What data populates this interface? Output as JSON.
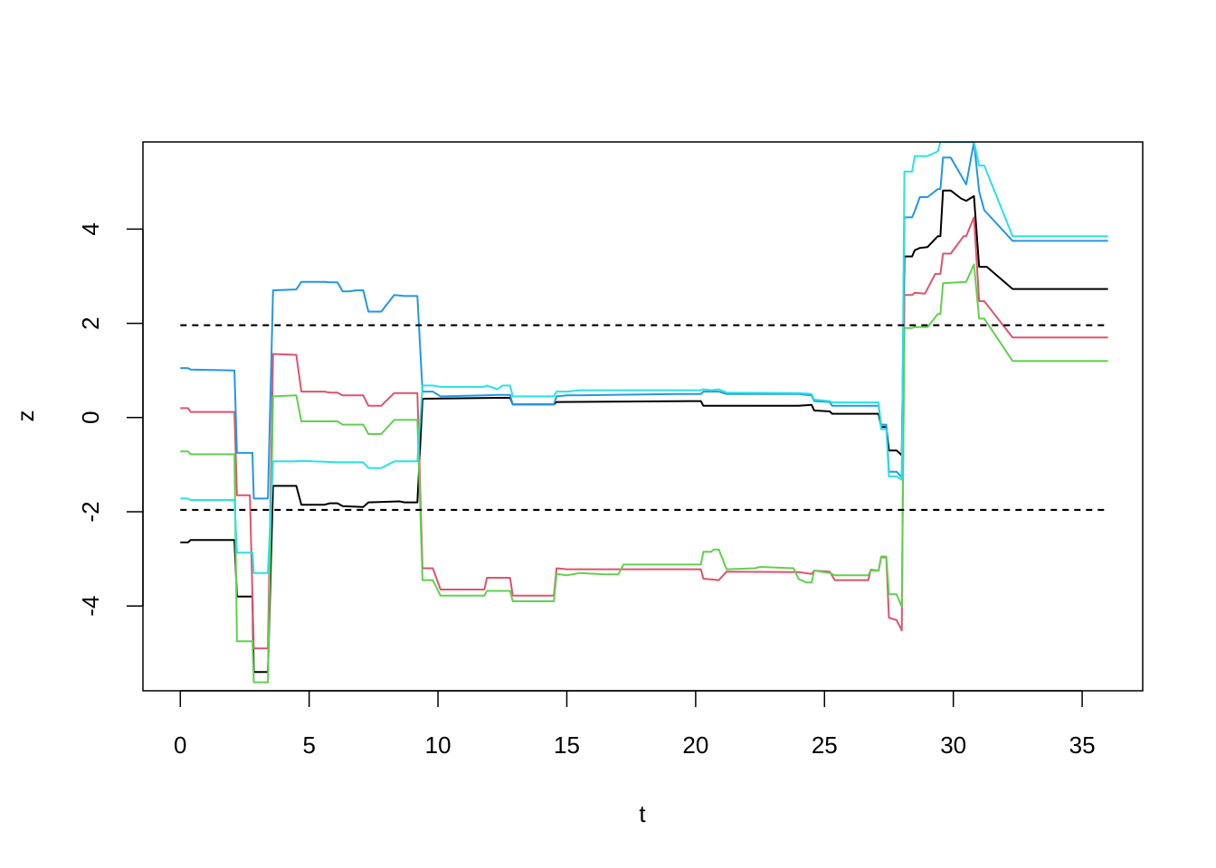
{
  "chart_data": {
    "type": "line",
    "title": "",
    "xlabel": "t",
    "ylabel": "z",
    "xlim": [
      -1.45,
      37.35
    ],
    "ylim": [
      -5.8,
      5.85
    ],
    "x_ticks": [
      0,
      5,
      10,
      15,
      20,
      25,
      30,
      35
    ],
    "x_tick_labels": [
      "0",
      "5",
      "10",
      "15",
      "20",
      "25",
      "30",
      "35"
    ],
    "y_ticks": [
      -4,
      -2,
      0,
      2,
      4
    ],
    "y_tick_labels": [
      "-4",
      "-2",
      "0",
      "2",
      "4"
    ],
    "grid": false,
    "legend": "none",
    "reference_lines": [
      {
        "y": 1.96,
        "x_range": [
          0,
          36
        ],
        "style": "dashed",
        "color": "#000000"
      },
      {
        "y": -1.96,
        "x_range": [
          0,
          36
        ],
        "style": "dashed",
        "color": "#000000"
      }
    ],
    "series": [
      {
        "color": "#000000",
        "points": [
          [
            0,
            -2.65
          ],
          [
            0.3,
            -2.65
          ],
          [
            0.4,
            -2.6
          ],
          [
            2.1,
            -2.6
          ],
          [
            2.2,
            -3.8
          ],
          [
            2.8,
            -3.8
          ],
          [
            2.85,
            -5.4
          ],
          [
            3.4,
            -5.4
          ],
          [
            3.6,
            -1.45
          ],
          [
            4.5,
            -1.45
          ],
          [
            4.7,
            -1.85
          ],
          [
            5.6,
            -1.85
          ],
          [
            5.8,
            -1.82
          ],
          [
            6.1,
            -1.82
          ],
          [
            6.3,
            -1.88
          ],
          [
            7.1,
            -1.9
          ],
          [
            7.3,
            -1.8
          ],
          [
            8.5,
            -1.78
          ],
          [
            8.7,
            -1.8
          ],
          [
            9.2,
            -1.8
          ],
          [
            9.4,
            0.4
          ],
          [
            12.8,
            0.42
          ],
          [
            12.9,
            0.28
          ],
          [
            14.5,
            0.28
          ],
          [
            14.6,
            0.33
          ],
          [
            20.2,
            0.35
          ],
          [
            20.3,
            0.25
          ],
          [
            24,
            0.25
          ],
          [
            24.5,
            0.27
          ],
          [
            24.6,
            0.15
          ],
          [
            25.2,
            0.13
          ],
          [
            25.3,
            0.08
          ],
          [
            27.1,
            0.08
          ],
          [
            27.2,
            -0.2
          ],
          [
            27.4,
            -0.2
          ],
          [
            27.5,
            -0.7
          ],
          [
            27.8,
            -0.7
          ],
          [
            28,
            -0.8
          ],
          [
            28.1,
            3.42
          ],
          [
            28.4,
            3.42
          ],
          [
            28.5,
            3.55
          ],
          [
            28.7,
            3.6
          ],
          [
            29,
            3.62
          ],
          [
            29.4,
            3.85
          ],
          [
            29.5,
            3.85
          ],
          [
            29.6,
            4.82
          ],
          [
            29.9,
            4.82
          ],
          [
            30.3,
            4.65
          ],
          [
            30.5,
            4.6
          ],
          [
            30.8,
            4.7
          ],
          [
            31,
            3.2
          ],
          [
            31.3,
            3.2
          ],
          [
            32.3,
            2.73
          ],
          [
            36,
            2.73
          ]
        ]
      },
      {
        "color": "#DF536B",
        "points": [
          [
            0,
            0.2
          ],
          [
            0.3,
            0.2
          ],
          [
            0.4,
            0.12
          ],
          [
            2.1,
            0.12
          ],
          [
            2.2,
            -1.65
          ],
          [
            2.7,
            -1.65
          ],
          [
            2.85,
            -4.9
          ],
          [
            3.4,
            -4.9
          ],
          [
            3.6,
            1.35
          ],
          [
            4.5,
            1.33
          ],
          [
            4.7,
            0.55
          ],
          [
            5.6,
            0.55
          ],
          [
            5.8,
            0.53
          ],
          [
            6.1,
            0.53
          ],
          [
            6.3,
            0.47
          ],
          [
            7.1,
            0.47
          ],
          [
            7.3,
            0.25
          ],
          [
            7.8,
            0.25
          ],
          [
            8.3,
            0.52
          ],
          [
            9.2,
            0.52
          ],
          [
            9.4,
            -3.2
          ],
          [
            9.8,
            -3.2
          ],
          [
            10.1,
            -3.65
          ],
          [
            11.8,
            -3.65
          ],
          [
            11.9,
            -3.4
          ],
          [
            12.8,
            -3.4
          ],
          [
            12.9,
            -3.78
          ],
          [
            14.5,
            -3.78
          ],
          [
            14.6,
            -3.2
          ],
          [
            15,
            -3.22
          ],
          [
            17,
            -3.22
          ],
          [
            20.2,
            -3.22
          ],
          [
            20.3,
            -3.42
          ],
          [
            20.9,
            -3.45
          ],
          [
            21.2,
            -3.27
          ],
          [
            24,
            -3.28
          ],
          [
            24.5,
            -3.32
          ],
          [
            24.6,
            -3.25
          ],
          [
            25.2,
            -3.27
          ],
          [
            25.4,
            -3.45
          ],
          [
            26.7,
            -3.45
          ],
          [
            26.8,
            -3.23
          ],
          [
            27.1,
            -3.25
          ],
          [
            27.2,
            -2.97
          ],
          [
            27.4,
            -2.97
          ],
          [
            27.5,
            -4.25
          ],
          [
            27.8,
            -4.3
          ],
          [
            28,
            -4.52
          ],
          [
            28.1,
            2.6
          ],
          [
            28.4,
            2.6
          ],
          [
            28.5,
            2.65
          ],
          [
            28.9,
            2.63
          ],
          [
            29.3,
            3.05
          ],
          [
            29.5,
            3.05
          ],
          [
            29.6,
            3.48
          ],
          [
            29.9,
            3.48
          ],
          [
            30.4,
            3.85
          ],
          [
            30.5,
            3.85
          ],
          [
            30.8,
            4.25
          ],
          [
            31,
            2.47
          ],
          [
            31.2,
            2.47
          ],
          [
            32.3,
            1.7
          ],
          [
            36,
            1.7
          ]
        ]
      },
      {
        "color": "#61D04F",
        "points": [
          [
            0,
            -0.72
          ],
          [
            0.3,
            -0.72
          ],
          [
            0.4,
            -0.78
          ],
          [
            2.1,
            -0.78
          ],
          [
            2.2,
            -4.75
          ],
          [
            2.8,
            -4.75
          ],
          [
            2.85,
            -5.62
          ],
          [
            3.4,
            -5.62
          ],
          [
            3.6,
            0.45
          ],
          [
            4.5,
            0.47
          ],
          [
            4.7,
            -0.08
          ],
          [
            6.1,
            -0.08
          ],
          [
            6.3,
            -0.15
          ],
          [
            7.1,
            -0.15
          ],
          [
            7.3,
            -0.35
          ],
          [
            7.8,
            -0.35
          ],
          [
            8.3,
            -0.05
          ],
          [
            9.2,
            -0.05
          ],
          [
            9.4,
            -3.45
          ],
          [
            9.8,
            -3.45
          ],
          [
            10.1,
            -3.78
          ],
          [
            11.8,
            -3.78
          ],
          [
            11.9,
            -3.68
          ],
          [
            12.8,
            -3.68
          ],
          [
            12.9,
            -3.9
          ],
          [
            14.5,
            -3.9
          ],
          [
            14.6,
            -3.32
          ],
          [
            15,
            -3.35
          ],
          [
            15.5,
            -3.3
          ],
          [
            16.5,
            -3.33
          ],
          [
            17,
            -3.33
          ],
          [
            17.2,
            -3.12
          ],
          [
            20.2,
            -3.12
          ],
          [
            20.3,
            -2.85
          ],
          [
            20.6,
            -2.85
          ],
          [
            20.7,
            -2.8
          ],
          [
            20.9,
            -2.8
          ],
          [
            21.2,
            -3.22
          ],
          [
            22.3,
            -3.2
          ],
          [
            22.5,
            -3.17
          ],
          [
            23.8,
            -3.2
          ],
          [
            24,
            -3.43
          ],
          [
            24.3,
            -3.5
          ],
          [
            24.5,
            -3.5
          ],
          [
            24.6,
            -3.25
          ],
          [
            25.2,
            -3.3
          ],
          [
            25.4,
            -3.35
          ],
          [
            26.7,
            -3.35
          ],
          [
            26.8,
            -3.25
          ],
          [
            27.1,
            -3.25
          ],
          [
            27.2,
            -2.95
          ],
          [
            27.4,
            -2.95
          ],
          [
            27.5,
            -3.75
          ],
          [
            27.8,
            -3.75
          ],
          [
            28,
            -4.02
          ],
          [
            28.1,
            1.9
          ],
          [
            28.4,
            1.9
          ],
          [
            28.5,
            1.92
          ],
          [
            29,
            1.92
          ],
          [
            29.4,
            2.2
          ],
          [
            29.5,
            2.2
          ],
          [
            29.6,
            2.85
          ],
          [
            30.5,
            2.88
          ],
          [
            30.8,
            3.25
          ],
          [
            31,
            2.1
          ],
          [
            31.2,
            2.1
          ],
          [
            32.3,
            1.2
          ],
          [
            36,
            1.2
          ]
        ]
      },
      {
        "color": "#2297E6",
        "points": [
          [
            0,
            1.05
          ],
          [
            0.3,
            1.05
          ],
          [
            0.4,
            1.02
          ],
          [
            2.1,
            1
          ],
          [
            2.2,
            -0.75
          ],
          [
            2.8,
            -0.75
          ],
          [
            2.85,
            -1.72
          ],
          [
            3.4,
            -1.72
          ],
          [
            3.6,
            2.7
          ],
          [
            4.5,
            2.72
          ],
          [
            4.7,
            2.88
          ],
          [
            5.6,
            2.88
          ],
          [
            5.8,
            2.87
          ],
          [
            6.1,
            2.87
          ],
          [
            6.3,
            2.68
          ],
          [
            6.6,
            2.68
          ],
          [
            6.8,
            2.7
          ],
          [
            7.1,
            2.7
          ],
          [
            7.3,
            2.25
          ],
          [
            7.8,
            2.25
          ],
          [
            8.3,
            2.6
          ],
          [
            8.7,
            2.58
          ],
          [
            9.2,
            2.58
          ],
          [
            9.4,
            0.55
          ],
          [
            9.8,
            0.55
          ],
          [
            10.1,
            0.45
          ],
          [
            11.8,
            0.47
          ],
          [
            12.3,
            0.48
          ],
          [
            12.8,
            0.48
          ],
          [
            12.9,
            0.28
          ],
          [
            14.5,
            0.28
          ],
          [
            14.6,
            0.45
          ],
          [
            15,
            0.47
          ],
          [
            19.3,
            0.5
          ],
          [
            20.2,
            0.5
          ],
          [
            20.3,
            0.55
          ],
          [
            20.9,
            0.55
          ],
          [
            21.2,
            0.5
          ],
          [
            24,
            0.5
          ],
          [
            24.5,
            0.47
          ],
          [
            24.6,
            0.35
          ],
          [
            25.2,
            0.33
          ],
          [
            25.3,
            0.25
          ],
          [
            27.1,
            0.25
          ],
          [
            27.2,
            -0.15
          ],
          [
            27.4,
            -0.15
          ],
          [
            27.5,
            -1.15
          ],
          [
            27.8,
            -1.15
          ],
          [
            28,
            -1.27
          ],
          [
            28.1,
            4.25
          ],
          [
            28.4,
            4.25
          ],
          [
            28.5,
            4.38
          ],
          [
            28.7,
            4.68
          ],
          [
            29,
            4.68
          ],
          [
            29.4,
            4.85
          ],
          [
            29.5,
            4.85
          ],
          [
            29.6,
            5.52
          ],
          [
            29.9,
            5.52
          ],
          [
            30.5,
            4.95
          ],
          [
            30.8,
            5.85
          ],
          [
            31,
            4.8
          ],
          [
            31.2,
            4.4
          ],
          [
            32.3,
            3.75
          ],
          [
            36,
            3.75
          ]
        ]
      },
      {
        "color": "#28E2E5",
        "points": [
          [
            0,
            -1.72
          ],
          [
            0.3,
            -1.72
          ],
          [
            0.4,
            -1.75
          ],
          [
            2.1,
            -1.75
          ],
          [
            2.2,
            -2.87
          ],
          [
            2.8,
            -2.87
          ],
          [
            2.85,
            -3.3
          ],
          [
            3.4,
            -3.3
          ],
          [
            3.6,
            -0.93
          ],
          [
            4.5,
            -0.93
          ],
          [
            4.7,
            -0.92
          ],
          [
            6.1,
            -0.95
          ],
          [
            6.6,
            -0.95
          ],
          [
            7.1,
            -0.95
          ],
          [
            7.3,
            -1.07
          ],
          [
            7.8,
            -1.07
          ],
          [
            8.3,
            -0.93
          ],
          [
            9.2,
            -0.93
          ],
          [
            9.4,
            0.68
          ],
          [
            9.8,
            0.68
          ],
          [
            10.1,
            0.65
          ],
          [
            11.8,
            0.65
          ],
          [
            11.9,
            0.68
          ],
          [
            12.3,
            0.6
          ],
          [
            12.5,
            0.68
          ],
          [
            12.8,
            0.68
          ],
          [
            12.9,
            0.45
          ],
          [
            14.5,
            0.45
          ],
          [
            14.6,
            0.55
          ],
          [
            15,
            0.55
          ],
          [
            15.5,
            0.58
          ],
          [
            20.2,
            0.58
          ],
          [
            20.3,
            0.6
          ],
          [
            20.6,
            0.58
          ],
          [
            20.9,
            0.6
          ],
          [
            21.2,
            0.53
          ],
          [
            24,
            0.52
          ],
          [
            24.5,
            0.5
          ],
          [
            24.6,
            0.38
          ],
          [
            25.2,
            0.35
          ],
          [
            25.3,
            0.32
          ],
          [
            27.1,
            0.32
          ],
          [
            27.2,
            -0.25
          ],
          [
            27.4,
            -0.25
          ],
          [
            27.5,
            -1.25
          ],
          [
            27.8,
            -1.25
          ],
          [
            28,
            -1.32
          ],
          [
            28.1,
            5.22
          ],
          [
            28.4,
            5.22
          ],
          [
            28.5,
            5.55
          ],
          [
            29,
            5.55
          ],
          [
            29.4,
            5.65
          ],
          [
            29.5,
            5.85
          ],
          [
            30.8,
            5.85
          ],
          [
            31,
            5.35
          ],
          [
            31.2,
            5.35
          ],
          [
            32.3,
            3.85
          ],
          [
            36,
            3.85
          ]
        ]
      }
    ]
  }
}
